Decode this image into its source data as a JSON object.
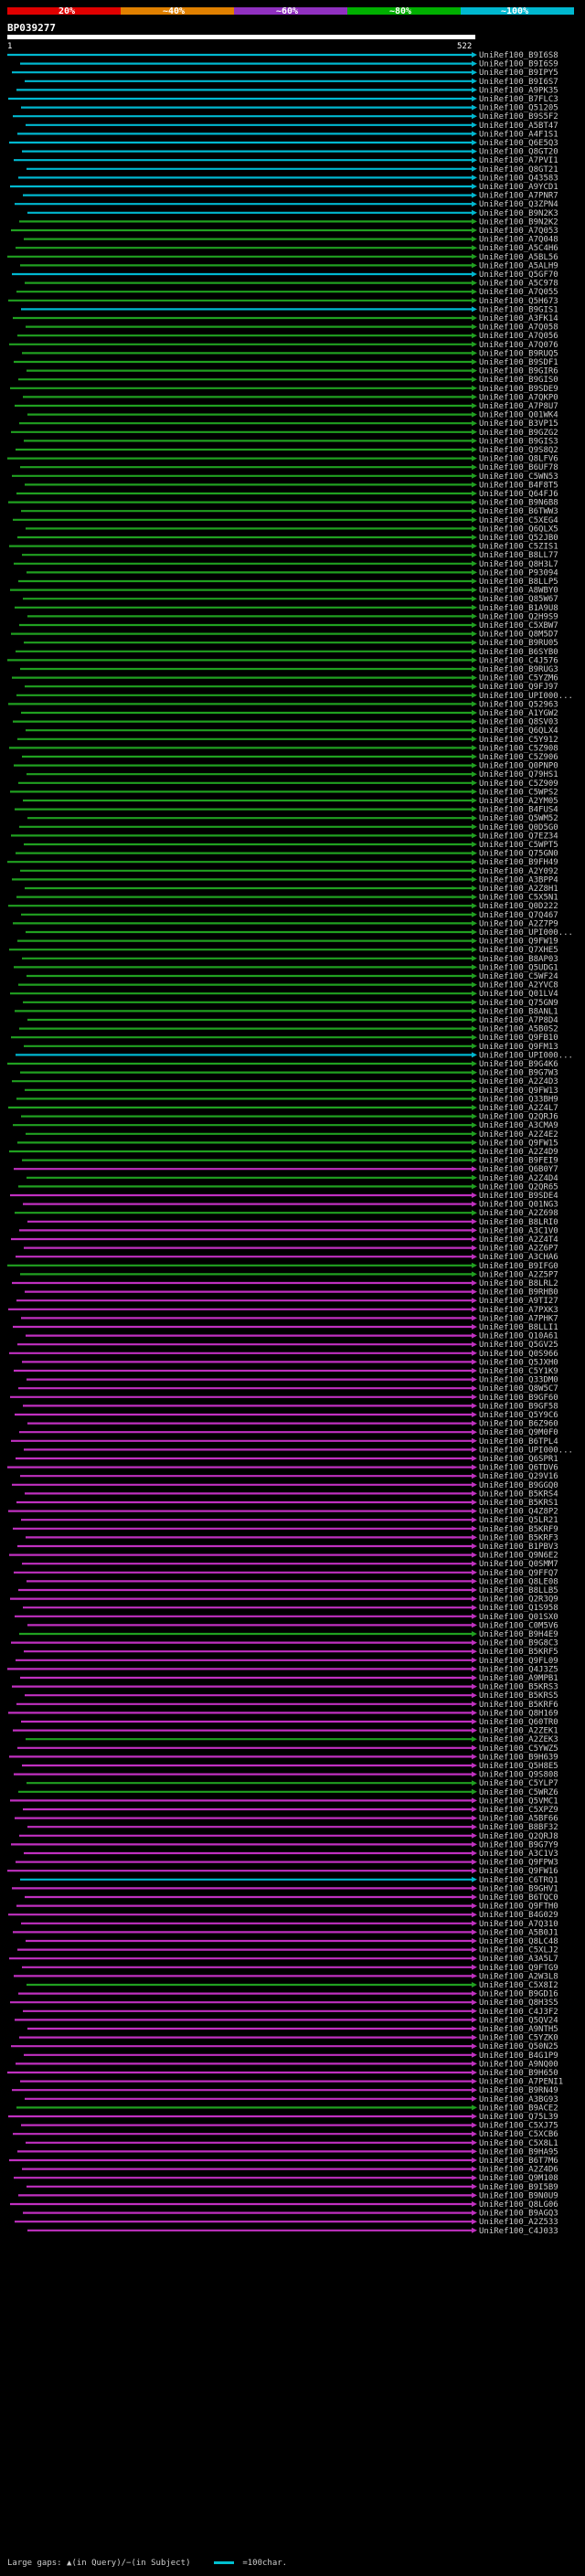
{
  "scale": {
    "labels": [
      "20%",
      "~40%",
      "~60%",
      "~80%",
      "~100%"
    ],
    "colors": [
      "#e00000",
      "#e08000",
      "#9030c0",
      "#00b000",
      "#00b8d0"
    ]
  },
  "query": {
    "id": "BP039277",
    "start": "1",
    "end": "522"
  },
  "hit_colors": {
    "cyan": "#00b8d0",
    "green": "#20a020",
    "magenta": "#c030c0",
    "dark": "#303030"
  },
  "hits": [
    {
      "label": "UniRef100_B9I6S8",
      "color": "cyan"
    },
    {
      "label": "UniRef100_B9I6S9",
      "color": "cyan"
    },
    {
      "label": "UniRef100_B9IPY5",
      "color": "cyan"
    },
    {
      "label": "UniRef100_B9I6S7",
      "color": "cyan"
    },
    {
      "label": "UniRef100_A9PK35",
      "color": "cyan"
    },
    {
      "label": "UniRef100_B7FLC3",
      "color": "cyan"
    },
    {
      "label": "UniRef100_Q51205",
      "color": "cyan"
    },
    {
      "label": "UniRef100_B9S5F2",
      "color": "cyan"
    },
    {
      "label": "UniRef100_A5BT47",
      "color": "cyan"
    },
    {
      "label": "UniRef100_A4F1S1",
      "color": "cyan"
    },
    {
      "label": "UniRef100_Q6E5Q3",
      "color": "cyan"
    },
    {
      "label": "UniRef100_Q8GT20",
      "color": "cyan"
    },
    {
      "label": "UniRef100_A7PVI1",
      "color": "cyan"
    },
    {
      "label": "UniRef100_Q8GT21",
      "color": "cyan"
    },
    {
      "label": "UniRef100_Q43583",
      "color": "cyan"
    },
    {
      "label": "UniRef100_A9YCD1",
      "color": "cyan"
    },
    {
      "label": "UniRef100_A7PNR7",
      "color": "cyan"
    },
    {
      "label": "UniRef100_Q3ZPN4",
      "color": "cyan"
    },
    {
      "label": "UniRef100_B9N2K3",
      "color": "cyan"
    },
    {
      "label": "UniRef100_B9N2K2",
      "color": "green"
    },
    {
      "label": "UniRef100_A7Q053",
      "color": "green"
    },
    {
      "label": "UniRef100_A7Q048",
      "color": "green"
    },
    {
      "label": "UniRef100_A5C4H6",
      "color": "green"
    },
    {
      "label": "UniRef100_A5BL56",
      "color": "green"
    },
    {
      "label": "UniRef100_A5ALH9",
      "color": "green"
    },
    {
      "label": "UniRef100_Q5GF70",
      "color": "cyan"
    },
    {
      "label": "UniRef100_A5C978",
      "color": "green"
    },
    {
      "label": "UniRef100_A7Q055",
      "color": "green"
    },
    {
      "label": "UniRef100_Q5H673",
      "color": "green"
    },
    {
      "label": "UniRef100_B9GIS1",
      "color": "cyan"
    },
    {
      "label": "UniRef100_A3FK14",
      "color": "green"
    },
    {
      "label": "UniRef100_A7Q058",
      "color": "green"
    },
    {
      "label": "UniRef100_A7Q056",
      "color": "green"
    },
    {
      "label": "UniRef100_A7Q076",
      "color": "green"
    },
    {
      "label": "UniRef100_B9RUQ5",
      "color": "green"
    },
    {
      "label": "UniRef100_B9SDF1",
      "color": "green"
    },
    {
      "label": "UniRef100_B9GIR6",
      "color": "green"
    },
    {
      "label": "UniRef100_B9GIS0",
      "color": "green"
    },
    {
      "label": "UniRef100_B9SDE9",
      "color": "green"
    },
    {
      "label": "UniRef100_A7QKP0",
      "color": "green"
    },
    {
      "label": "UniRef100_A7P8U7",
      "color": "green"
    },
    {
      "label": "UniRef100_Q01WK4",
      "color": "green"
    },
    {
      "label": "UniRef100_B3VP15",
      "color": "green"
    },
    {
      "label": "UniRef100_B9GZG2",
      "color": "green"
    },
    {
      "label": "UniRef100_B9GIS3",
      "color": "green"
    },
    {
      "label": "UniRef100_Q9S8Q2",
      "color": "green"
    },
    {
      "label": "UniRef100_Q8LFV6",
      "color": "green"
    },
    {
      "label": "UniRef100_B6UF78",
      "color": "green"
    },
    {
      "label": "UniRef100_C5WN53",
      "color": "green"
    },
    {
      "label": "UniRef100_B4F8T5",
      "color": "green"
    },
    {
      "label": "UniRef100_Q64FJ6",
      "color": "green"
    },
    {
      "label": "UniRef100_B9N6B8",
      "color": "green"
    },
    {
      "label": "UniRef100_B6TWW3",
      "color": "green"
    },
    {
      "label": "UniRef100_C5XEG4",
      "color": "green"
    },
    {
      "label": "UniRef100_Q6QLX5",
      "color": "green"
    },
    {
      "label": "UniRef100_Q52JB0",
      "color": "green"
    },
    {
      "label": "UniRef100_C5ZIS1",
      "color": "green"
    },
    {
      "label": "UniRef100_B8LL77",
      "color": "green"
    },
    {
      "label": "UniRef100_Q8H3L7",
      "color": "green"
    },
    {
      "label": "UniRef100_P93094",
      "color": "green"
    },
    {
      "label": "UniRef100_B8LLP5",
      "color": "green"
    },
    {
      "label": "UniRef100_A8WBY0",
      "color": "green"
    },
    {
      "label": "UniRef100_Q85W67",
      "color": "green"
    },
    {
      "label": "UniRef100_B1A9U8",
      "color": "green"
    },
    {
      "label": "UniRef100_Q2H9S9",
      "color": "green"
    },
    {
      "label": "UniRef100_C5XBW7",
      "color": "green"
    },
    {
      "label": "UniRef100_Q8M5D7",
      "color": "green"
    },
    {
      "label": "UniRef100_B9RU05",
      "color": "green"
    },
    {
      "label": "UniRef100_B6SYB0",
      "color": "green"
    },
    {
      "label": "UniRef100_C4J576",
      "color": "green"
    },
    {
      "label": "UniRef100_B9RUG3",
      "color": "green"
    },
    {
      "label": "UniRef100_C5YZM6",
      "color": "green"
    },
    {
      "label": "UniRef100_Q9FJ97",
      "color": "green"
    },
    {
      "label": "UniRef100_UPI000...",
      "color": "green"
    },
    {
      "label": "UniRef100_Q52963",
      "color": "green"
    },
    {
      "label": "UniRef100_A1YGW2",
      "color": "green"
    },
    {
      "label": "UniRef100_Q8SV03",
      "color": "green"
    },
    {
      "label": "UniRef100_Q6QLX4",
      "color": "green"
    },
    {
      "label": "UniRef100_C5Y912",
      "color": "green"
    },
    {
      "label": "UniRef100_C5Z908",
      "color": "green"
    },
    {
      "label": "UniRef100_C5Z906",
      "color": "green"
    },
    {
      "label": "UniRef100_Q0PNP0",
      "color": "green"
    },
    {
      "label": "UniRef100_Q79HS1",
      "color": "green"
    },
    {
      "label": "UniRef100_C5Z909",
      "color": "green"
    },
    {
      "label": "UniRef100_C5WPS2",
      "color": "green"
    },
    {
      "label": "UniRef100_A2YM05",
      "color": "green"
    },
    {
      "label": "UniRef100_B4FUS4",
      "color": "green"
    },
    {
      "label": "UniRef100_Q5WM52",
      "color": "green"
    },
    {
      "label": "UniRef100_Q0D5G0",
      "color": "green"
    },
    {
      "label": "UniRef100_Q7EZ34",
      "color": "green"
    },
    {
      "label": "UniRef100_C5WPT5",
      "color": "green"
    },
    {
      "label": "UniRef100_Q75GN0",
      "color": "green"
    },
    {
      "label": "UniRef100_B9FH49",
      "color": "green"
    },
    {
      "label": "UniRef100_A2Y092",
      "color": "green"
    },
    {
      "label": "UniRef100_A3BPP4",
      "color": "green"
    },
    {
      "label": "UniRef100_A2Z8H1",
      "color": "green"
    },
    {
      "label": "UniRef100_C5X5N1",
      "color": "green"
    },
    {
      "label": "UniRef100_Q0D222",
      "color": "green"
    },
    {
      "label": "UniRef100_Q7Q467",
      "color": "green"
    },
    {
      "label": "UniRef100_A2Z7P9",
      "color": "green"
    },
    {
      "label": "UniRef100_UPI000...",
      "color": "green"
    },
    {
      "label": "UniRef100_Q9FW19",
      "color": "green"
    },
    {
      "label": "UniRef100_Q7XHE5",
      "color": "green"
    },
    {
      "label": "UniRef100_B8AP03",
      "color": "green"
    },
    {
      "label": "UniRef100_Q5UDG1",
      "color": "green"
    },
    {
      "label": "UniRef100_C5WF24",
      "color": "green"
    },
    {
      "label": "UniRef100_A2YVC8",
      "color": "green"
    },
    {
      "label": "UniRef100_Q01LV4",
      "color": "green"
    },
    {
      "label": "UniRef100_Q75GN9",
      "color": "green"
    },
    {
      "label": "UniRef100_B8ANL1",
      "color": "green"
    },
    {
      "label": "UniRef100_A7P8D4",
      "color": "green"
    },
    {
      "label": "UniRef100_A5B0S2",
      "color": "green"
    },
    {
      "label": "UniRef100_Q9FB10",
      "color": "green"
    },
    {
      "label": "UniRef100_Q9FM13",
      "color": "green"
    },
    {
      "label": "UniRef100_UPI000...",
      "color": "cyan"
    },
    {
      "label": "UniRef100_B9G4K6",
      "color": "green"
    },
    {
      "label": "UniRef100_B9G7W3",
      "color": "green"
    },
    {
      "label": "UniRef100_A2Z4D3",
      "color": "green"
    },
    {
      "label": "UniRef100_Q9FW13",
      "color": "green"
    },
    {
      "label": "UniRef100_Q33BH9",
      "color": "green"
    },
    {
      "label": "UniRef100_A2Z4L7",
      "color": "green"
    },
    {
      "label": "UniRef100_Q2QRJ6",
      "color": "green"
    },
    {
      "label": "UniRef100_A3CMA9",
      "color": "green"
    },
    {
      "label": "UniRef100_A2Z4E2",
      "color": "green"
    },
    {
      "label": "UniRef100_Q9FW15",
      "color": "green"
    },
    {
      "label": "UniRef100_A2Z4D9",
      "color": "green"
    },
    {
      "label": "UniRef100_B9FEI9",
      "color": "green"
    },
    {
      "label": "UniRef100_Q6B0Y7",
      "color": "magenta"
    },
    {
      "label": "UniRef100_A2Z4D4",
      "color": "green"
    },
    {
      "label": "UniRef100_Q2QR65",
      "color": "green"
    },
    {
      "label": "UniRef100_B9SDE4",
      "color": "magenta"
    },
    {
      "label": "UniRef100_Q01NG3",
      "color": "magenta"
    },
    {
      "label": "UniRef100_A2Z698",
      "color": "green"
    },
    {
      "label": "UniRef100_B8LRI0",
      "color": "magenta"
    },
    {
      "label": "UniRef100_A3C1V0",
      "color": "magenta"
    },
    {
      "label": "UniRef100_A2Z4T4",
      "color": "magenta"
    },
    {
      "label": "UniRef100_A2Z6P7",
      "color": "magenta"
    },
    {
      "label": "UniRef100_A3CHA6",
      "color": "magenta"
    },
    {
      "label": "UniRef100_B9IFG0",
      "color": "green"
    },
    {
      "label": "UniRef100_A2Z5P7",
      "color": "green"
    },
    {
      "label": "UniRef100_B8LRL2",
      "color": "magenta"
    },
    {
      "label": "UniRef100_B9RHB0",
      "color": "magenta"
    },
    {
      "label": "UniRef100_A9TI27",
      "color": "magenta"
    },
    {
      "label": "UniRef100_A7PXK3",
      "color": "magenta"
    },
    {
      "label": "UniRef100_A7PHK7",
      "color": "magenta"
    },
    {
      "label": "UniRef100_B8LLI1",
      "color": "magenta"
    },
    {
      "label": "UniRef100_Q10A61",
      "color": "magenta"
    },
    {
      "label": "UniRef100_Q5GV25",
      "color": "magenta"
    },
    {
      "label": "UniRef100_Q0S966",
      "color": "magenta"
    },
    {
      "label": "UniRef100_Q5JXH0",
      "color": "magenta"
    },
    {
      "label": "UniRef100_C5Y1K9",
      "color": "magenta"
    },
    {
      "label": "UniRef100_Q33DM0",
      "color": "magenta"
    },
    {
      "label": "UniRef100_Q8W5C7",
      "color": "magenta"
    },
    {
      "label": "UniRef100_B9GF60",
      "color": "magenta"
    },
    {
      "label": "UniRef100_B9GF58",
      "color": "magenta"
    },
    {
      "label": "UniRef100_Q5Y9C6",
      "color": "magenta"
    },
    {
      "label": "UniRef100_B6Z960",
      "color": "magenta"
    },
    {
      "label": "UniRef100_Q9M0F0",
      "color": "magenta"
    },
    {
      "label": "UniRef100_B6TPL4",
      "color": "magenta"
    },
    {
      "label": "UniRef100_UPI000...",
      "color": "magenta"
    },
    {
      "label": "UniRef100_Q6SPR1",
      "color": "magenta"
    },
    {
      "label": "UniRef100_Q6TDV6",
      "color": "magenta"
    },
    {
      "label": "UniRef100_Q29V16",
      "color": "magenta"
    },
    {
      "label": "UniRef100_B9GGQ0",
      "color": "magenta"
    },
    {
      "label": "UniRef100_B5KRS4",
      "color": "magenta"
    },
    {
      "label": "UniRef100_B5KRS1",
      "color": "magenta"
    },
    {
      "label": "UniRef100_Q4Z8P2",
      "color": "magenta"
    },
    {
      "label": "UniRef100_Q5LR21",
      "color": "magenta"
    },
    {
      "label": "UniRef100_B5KRF9",
      "color": "magenta"
    },
    {
      "label": "UniRef100_B5KRF3",
      "color": "magenta"
    },
    {
      "label": "UniRef100_B1PBV3",
      "color": "magenta"
    },
    {
      "label": "UniRef100_Q9N6E2",
      "color": "magenta"
    },
    {
      "label": "UniRef100_Q0SMM7",
      "color": "magenta"
    },
    {
      "label": "UniRef100_Q9FFQ7",
      "color": "magenta"
    },
    {
      "label": "UniRef100_Q8LE08",
      "color": "magenta"
    },
    {
      "label": "UniRef100_B8LLB5",
      "color": "magenta"
    },
    {
      "label": "UniRef100_Q2R3Q9",
      "color": "magenta"
    },
    {
      "label": "UniRef100_Q1S958",
      "color": "magenta"
    },
    {
      "label": "UniRef100_Q01SX0",
      "color": "magenta"
    },
    {
      "label": "UniRef100_C0M5V6",
      "color": "magenta"
    },
    {
      "label": "UniRef100_B9H4E9",
      "color": "green"
    },
    {
      "label": "UniRef100_B9G8C3",
      "color": "magenta"
    },
    {
      "label": "UniRef100_B5KRF5",
      "color": "magenta"
    },
    {
      "label": "UniRef100_Q9FL09",
      "color": "magenta"
    },
    {
      "label": "UniRef100_Q4J3Z5",
      "color": "magenta"
    },
    {
      "label": "UniRef100_A9MPB1",
      "color": "magenta"
    },
    {
      "label": "UniRef100_B5KRS3",
      "color": "magenta"
    },
    {
      "label": "UniRef100_B5KRS5",
      "color": "magenta"
    },
    {
      "label": "UniRef100_B5KRF6",
      "color": "magenta"
    },
    {
      "label": "UniRef100_Q8H169",
      "color": "magenta"
    },
    {
      "label": "UniRef100_Q60TR0",
      "color": "magenta"
    },
    {
      "label": "UniRef100_A2ZEK1",
      "color": "magenta"
    },
    {
      "label": "UniRef100_A2ZEK3",
      "color": "green"
    },
    {
      "label": "UniRef100_C5YWZ5",
      "color": "magenta"
    },
    {
      "label": "UniRef100_B9H639",
      "color": "magenta"
    },
    {
      "label": "UniRef100_Q5H8E5",
      "color": "magenta"
    },
    {
      "label": "UniRef100_Q9S808",
      "color": "magenta"
    },
    {
      "label": "UniRef100_C5YLP7",
      "color": "green"
    },
    {
      "label": "UniRef100_C5WRZ6",
      "color": "green"
    },
    {
      "label": "UniRef100_Q5VMC1",
      "color": "magenta"
    },
    {
      "label": "UniRef100_C5XPZ9",
      "color": "magenta"
    },
    {
      "label": "UniRef100_A5BF66",
      "color": "magenta"
    },
    {
      "label": "UniRef100_B8BF32",
      "color": "magenta"
    },
    {
      "label": "UniRef100_Q2QRJ8",
      "color": "magenta"
    },
    {
      "label": "UniRef100_B9G7Y9",
      "color": "magenta"
    },
    {
      "label": "UniRef100_A3C1V3",
      "color": "magenta"
    },
    {
      "label": "UniRef100_Q9FPW3",
      "color": "magenta"
    },
    {
      "label": "UniRef100_Q9FW16",
      "color": "magenta"
    },
    {
      "label": "UniRef100_C6TRQ1",
      "color": "cyan"
    },
    {
      "label": "UniRef100_B9GHV1",
      "color": "magenta"
    },
    {
      "label": "UniRef100_B6TQC0",
      "color": "magenta"
    },
    {
      "label": "UniRef100_Q9FTH0",
      "color": "magenta"
    },
    {
      "label": "UniRef100_B4G029",
      "color": "magenta"
    },
    {
      "label": "UniRef100_A7Q310",
      "color": "magenta"
    },
    {
      "label": "UniRef100_A5B0J1",
      "color": "magenta"
    },
    {
      "label": "UniRef100_Q8LC48",
      "color": "magenta"
    },
    {
      "label": "UniRef100_C5XLJ2",
      "color": "magenta"
    },
    {
      "label": "UniRef100_A3A5L7",
      "color": "magenta"
    },
    {
      "label": "UniRef100_Q9FTG9",
      "color": "magenta"
    },
    {
      "label": "UniRef100_A2W3L8",
      "color": "magenta"
    },
    {
      "label": "UniRef100_C5X8I2",
      "color": "green"
    },
    {
      "label": "UniRef100_B9GD16",
      "color": "magenta"
    },
    {
      "label": "UniRef100_Q8H3S5",
      "color": "magenta"
    },
    {
      "label": "UniRef100_C4J3F2",
      "color": "magenta"
    },
    {
      "label": "UniRef100_Q5QV24",
      "color": "magenta"
    },
    {
      "label": "UniRef100_A9NTH5",
      "color": "magenta"
    },
    {
      "label": "UniRef100_C5YZK0",
      "color": "magenta"
    },
    {
      "label": "UniRef100_Q50N25",
      "color": "magenta"
    },
    {
      "label": "UniRef100_B4G1P9",
      "color": "magenta"
    },
    {
      "label": "UniRef100_A9NQ00",
      "color": "magenta"
    },
    {
      "label": "UniRef100_B9H650",
      "color": "magenta"
    },
    {
      "label": "UniRef100_A7PENI1",
      "color": "magenta"
    },
    {
      "label": "UniRef100_B9RN49",
      "color": "magenta"
    },
    {
      "label": "UniRef100_A3BG93",
      "color": "magenta"
    },
    {
      "label": "UniRef100_B9ACE2",
      "color": "green"
    },
    {
      "label": "UniRef100_Q75L39",
      "color": "magenta"
    },
    {
      "label": "UniRef100_C5XJ75",
      "color": "magenta"
    },
    {
      "label": "UniRef100_C5XCB6",
      "color": "magenta"
    },
    {
      "label": "UniRef100_C5X8L1",
      "color": "magenta"
    },
    {
      "label": "UniRef100_B9HA95",
      "color": "magenta"
    },
    {
      "label": "UniRef100_B6T7M6",
      "color": "magenta"
    },
    {
      "label": "UniRef100_A2Z4D6",
      "color": "magenta"
    },
    {
      "label": "UniRef100_Q9M108",
      "color": "magenta"
    },
    {
      "label": "UniRef100_B9I5B9",
      "color": "magenta"
    },
    {
      "label": "UniRef100_B9N0U9",
      "color": "magenta"
    },
    {
      "label": "UniRef100_Q8LG06",
      "color": "magenta"
    },
    {
      "label": "UniRef100_B9AGQ3",
      "color": "magenta"
    },
    {
      "label": "UniRef100_A2Z533",
      "color": "magenta"
    },
    {
      "label": "UniRef100_C4J033",
      "color": "magenta"
    }
  ],
  "footer": {
    "text": "Large gaps: ▲(in Query)/−(in Subject)",
    "legend": "=100char."
  }
}
